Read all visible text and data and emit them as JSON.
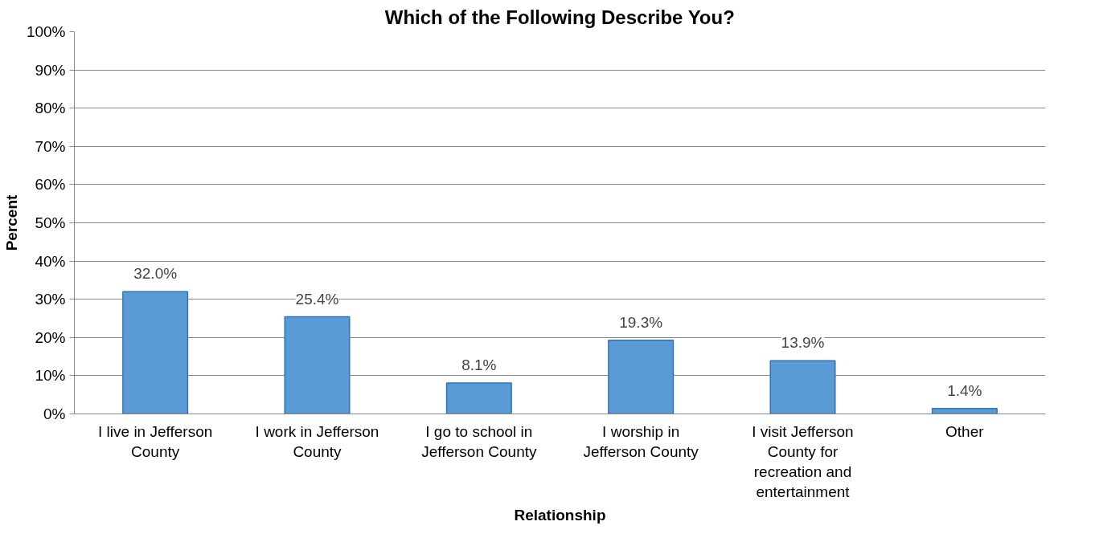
{
  "chart_data": {
    "type": "bar",
    "title": "Which of the Following Describe You?",
    "xlabel": "Relationship",
    "ylabel": "Percent",
    "categories": [
      "I live in Jefferson County",
      "I work in Jefferson County",
      "I go to school in Jefferson County",
      "I worship in Jefferson County",
      "I visit Jefferson County for recreation and entertainment",
      "Other"
    ],
    "values": [
      32.0,
      25.4,
      8.1,
      19.3,
      13.9,
      1.4
    ],
    "value_labels": [
      "32.0%",
      "25.4%",
      "8.1%",
      "19.3%",
      "13.9%",
      "1.4%"
    ],
    "color": "#5b9bd5",
    "ylim": [
      0,
      100
    ],
    "yticks": [
      {
        "value": 0,
        "label": "0%"
      },
      {
        "value": 10,
        "label": "10%"
      },
      {
        "value": 20,
        "label": "20%"
      },
      {
        "value": 30,
        "label": "30%"
      },
      {
        "value": 40,
        "label": "40%"
      },
      {
        "value": 50,
        "label": "50%"
      },
      {
        "value": 60,
        "label": "60%"
      },
      {
        "value": 70,
        "label": "70%"
      },
      {
        "value": 80,
        "label": "80%"
      },
      {
        "value": 90,
        "label": "90%"
      },
      {
        "value": 100,
        "label": "100%"
      }
    ],
    "grid": "y"
  }
}
